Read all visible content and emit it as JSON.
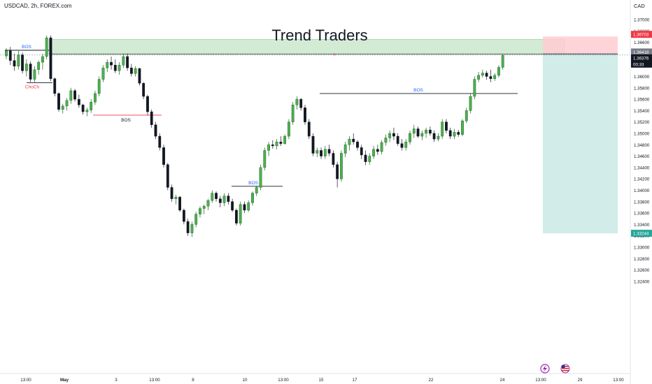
{
  "header": {
    "symbol_label": "USDCAD, 2h, FOREX.com",
    "currency": "CAD"
  },
  "title": "Trend Traders",
  "chart_data": {
    "type": "candlestick",
    "ylim": [
      1.3225,
      1.3725
    ],
    "y_ticks": [
      "1.37000",
      "1.36800",
      "1.36600",
      "1.36400",
      "1.36200",
      "1.36000",
      "1.35800",
      "1.35600",
      "1.35400",
      "1.35200",
      "1.35000",
      "1.34800",
      "1.34600",
      "1.34400",
      "1.34200",
      "1.34000",
      "1.33800",
      "1.33600",
      "1.33400",
      "1.33200",
      "1.33000",
      "1.32800",
      "1.32600",
      "1.32400"
    ],
    "x_ticks": [
      "13:00",
      "May",
      "3",
      "13:00",
      "8",
      "10",
      "13:00",
      "15",
      "17",
      "22",
      "24",
      "13:00",
      "29",
      "13:00"
    ],
    "price_tags": {
      "stop": "1.36703",
      "entry": "1.36418",
      "current": "1.36376",
      "countdown": "00:33",
      "target": "1.33244"
    },
    "annotations": [
      {
        "label": "BOS",
        "price": 1.3646,
        "color": "#2962ff"
      },
      {
        "label": "ChoCh",
        "price": 1.3589,
        "color": "#f23645"
      },
      {
        "label": "BOS",
        "price": 1.3532,
        "color": "#131722"
      },
      {
        "label": "BOS",
        "price": 1.3407,
        "color": "#2962ff"
      },
      {
        "label": "BOS",
        "price": 1.357,
        "color": "#2962ff"
      }
    ],
    "supply_zone": {
      "top": 1.3665,
      "bottom": 1.364
    },
    "short_position": {
      "entry": 1.364,
      "stop": 1.36703,
      "target": 1.33244
    },
    "series": [
      {
        "name": "candles",
        "values": [
          [
            1.3636,
            1.365,
            1.363,
            1.3645
          ],
          [
            1.3645,
            1.3652,
            1.362,
            1.3628
          ],
          [
            1.3628,
            1.364,
            1.361,
            1.3618
          ],
          [
            1.3618,
            1.3645,
            1.3612,
            1.3638
          ],
          [
            1.3638,
            1.3642,
            1.3605,
            1.361
          ],
          [
            1.361,
            1.363,
            1.36,
            1.3622
          ],
          [
            1.3622,
            1.3626,
            1.359,
            1.3595
          ],
          [
            1.3595,
            1.3618,
            1.359,
            1.3612
          ],
          [
            1.3612,
            1.3628,
            1.3603,
            1.3625
          ],
          [
            1.3625,
            1.364,
            1.3612,
            1.3635
          ],
          [
            1.3635,
            1.3672,
            1.363,
            1.3668
          ],
          [
            1.3668,
            1.3672,
            1.3592,
            1.3596
          ],
          [
            1.3596,
            1.3598,
            1.3565,
            1.357
          ],
          [
            1.357,
            1.3572,
            1.3538,
            1.3542
          ],
          [
            1.3542,
            1.3552,
            1.3535,
            1.3548
          ],
          [
            1.3548,
            1.3562,
            1.354,
            1.3558
          ],
          [
            1.3558,
            1.358,
            1.3552,
            1.3575
          ],
          [
            1.3575,
            1.3578,
            1.3556,
            1.356
          ],
          [
            1.356,
            1.3568,
            1.3545,
            1.355
          ],
          [
            1.355,
            1.3552,
            1.3533,
            1.3538
          ],
          [
            1.3538,
            1.3545,
            1.353,
            1.3541
          ],
          [
            1.3541,
            1.356,
            1.3536,
            1.3555
          ],
          [
            1.3555,
            1.3575,
            1.355,
            1.357
          ],
          [
            1.357,
            1.36,
            1.3565,
            1.3595
          ],
          [
            1.3595,
            1.362,
            1.359,
            1.3615
          ],
          [
            1.3615,
            1.363,
            1.3608,
            1.3625
          ],
          [
            1.3625,
            1.3635,
            1.3612,
            1.362
          ],
          [
            1.362,
            1.363,
            1.3606,
            1.361
          ],
          [
            1.361,
            1.3625,
            1.3603,
            1.362
          ],
          [
            1.362,
            1.364,
            1.3615,
            1.3635
          ],
          [
            1.3635,
            1.364,
            1.361,
            1.3615
          ],
          [
            1.3615,
            1.3622,
            1.36,
            1.3605
          ],
          [
            1.3605,
            1.3618,
            1.36,
            1.3614
          ],
          [
            1.3614,
            1.3615,
            1.3584,
            1.3588
          ],
          [
            1.3588,
            1.359,
            1.356,
            1.3565
          ],
          [
            1.3565,
            1.3568,
            1.3532,
            1.3538
          ],
          [
            1.3538,
            1.3542,
            1.351,
            1.3515
          ],
          [
            1.3515,
            1.352,
            1.349,
            1.3495
          ],
          [
            1.3495,
            1.35,
            1.347,
            1.3475
          ],
          [
            1.3475,
            1.348,
            1.344,
            1.3445
          ],
          [
            1.3445,
            1.3448,
            1.34,
            1.3405
          ],
          [
            1.3405,
            1.341,
            1.338,
            1.3385
          ],
          [
            1.3385,
            1.3392,
            1.3375,
            1.3388
          ],
          [
            1.3388,
            1.339,
            1.3362,
            1.3365
          ],
          [
            1.3365,
            1.3368,
            1.334,
            1.3345
          ],
          [
            1.3345,
            1.335,
            1.332,
            1.3325
          ],
          [
            1.3325,
            1.3345,
            1.3318,
            1.334
          ],
          [
            1.334,
            1.3362,
            1.3335,
            1.3358
          ],
          [
            1.3358,
            1.3372,
            1.3352,
            1.3368
          ],
          [
            1.3368,
            1.3375,
            1.3358,
            1.3372
          ],
          [
            1.3372,
            1.3385,
            1.3365,
            1.3382
          ],
          [
            1.3382,
            1.34,
            1.3378,
            1.3395
          ],
          [
            1.3395,
            1.3398,
            1.338,
            1.3385
          ],
          [
            1.3385,
            1.339,
            1.337,
            1.3378
          ],
          [
            1.3378,
            1.3395,
            1.3372,
            1.339
          ],
          [
            1.339,
            1.3395,
            1.3375,
            1.338
          ],
          [
            1.338,
            1.3385,
            1.3362,
            1.3365
          ],
          [
            1.3365,
            1.3368,
            1.3338,
            1.3342
          ],
          [
            1.3342,
            1.338,
            1.3338,
            1.3375
          ],
          [
            1.3375,
            1.338,
            1.336,
            1.3365
          ],
          [
            1.3365,
            1.3382,
            1.3362,
            1.3378
          ],
          [
            1.3378,
            1.3398,
            1.3373,
            1.3395
          ],
          [
            1.3395,
            1.3408,
            1.339,
            1.3405
          ],
          [
            1.3405,
            1.3445,
            1.34,
            1.344
          ],
          [
            1.344,
            1.3475,
            1.3435,
            1.347
          ],
          [
            1.347,
            1.3485,
            1.346,
            1.348
          ],
          [
            1.348,
            1.3488,
            1.3473,
            1.3478
          ],
          [
            1.3478,
            1.349,
            1.3472,
            1.3485
          ],
          [
            1.3485,
            1.3495,
            1.3478,
            1.3482
          ],
          [
            1.3482,
            1.3498,
            1.348,
            1.3495
          ],
          [
            1.3495,
            1.3525,
            1.349,
            1.352
          ],
          [
            1.352,
            1.3555,
            1.3515,
            1.355
          ],
          [
            1.355,
            1.3565,
            1.3542,
            1.356
          ],
          [
            1.356,
            1.3562,
            1.354,
            1.3545
          ],
          [
            1.3545,
            1.355,
            1.3515,
            1.352
          ],
          [
            1.352,
            1.3525,
            1.349,
            1.3495
          ],
          [
            1.3495,
            1.35,
            1.346,
            1.3465
          ],
          [
            1.3465,
            1.3475,
            1.3458,
            1.347
          ],
          [
            1.347,
            1.3475,
            1.3455,
            1.346
          ],
          [
            1.346,
            1.3478,
            1.3455,
            1.3472
          ],
          [
            1.3472,
            1.348,
            1.346,
            1.3465
          ],
          [
            1.3465,
            1.347,
            1.344,
            1.3445
          ],
          [
            1.3445,
            1.345,
            1.3405,
            1.342
          ],
          [
            1.342,
            1.347,
            1.3415,
            1.3465
          ],
          [
            1.3465,
            1.3485,
            1.3458,
            1.348
          ],
          [
            1.348,
            1.3495,
            1.347,
            1.349
          ],
          [
            1.349,
            1.35,
            1.348,
            1.3485
          ],
          [
            1.3485,
            1.3488,
            1.347,
            1.3475
          ],
          [
            1.3475,
            1.348,
            1.3455,
            1.3462
          ],
          [
            1.3462,
            1.347,
            1.3444,
            1.345
          ],
          [
            1.345,
            1.3465,
            1.3445,
            1.346
          ],
          [
            1.346,
            1.3478,
            1.3455,
            1.3472
          ],
          [
            1.3472,
            1.348,
            1.3462,
            1.3468
          ],
          [
            1.3468,
            1.3488,
            1.3463,
            1.3484
          ],
          [
            1.3484,
            1.3498,
            1.3478,
            1.3492
          ],
          [
            1.3492,
            1.3505,
            1.3485,
            1.35
          ],
          [
            1.35,
            1.351,
            1.3488,
            1.3495
          ],
          [
            1.3495,
            1.35,
            1.3478,
            1.3482
          ],
          [
            1.3482,
            1.349,
            1.347,
            1.3475
          ],
          [
            1.3475,
            1.349,
            1.347,
            1.3485
          ],
          [
            1.3485,
            1.3505,
            1.348,
            1.35
          ],
          [
            1.35,
            1.3515,
            1.3492,
            1.3508
          ],
          [
            1.3508,
            1.3512,
            1.3492,
            1.3495
          ],
          [
            1.3495,
            1.3505,
            1.3488,
            1.35
          ],
          [
            1.35,
            1.351,
            1.3492,
            1.3506
          ],
          [
            1.3506,
            1.3512,
            1.3496,
            1.35
          ],
          [
            1.35,
            1.3505,
            1.3485,
            1.349
          ],
          [
            1.349,
            1.35,
            1.3486,
            1.3495
          ],
          [
            1.3495,
            1.3525,
            1.349,
            1.352
          ],
          [
            1.352,
            1.3525,
            1.35,
            1.3505
          ],
          [
            1.3505,
            1.351,
            1.349,
            1.3495
          ],
          [
            1.3495,
            1.3508,
            1.349,
            1.3502
          ],
          [
            1.3502,
            1.3506,
            1.3494,
            1.3498
          ],
          [
            1.3498,
            1.3525,
            1.3495,
            1.3522
          ],
          [
            1.3522,
            1.3545,
            1.3518,
            1.354
          ],
          [
            1.354,
            1.357,
            1.3535,
            1.3565
          ],
          [
            1.3565,
            1.36,
            1.356,
            1.3595
          ],
          [
            1.3595,
            1.3608,
            1.359,
            1.3602
          ],
          [
            1.3602,
            1.3612,
            1.3598,
            1.3606
          ],
          [
            1.3606,
            1.361,
            1.3594,
            1.36
          ],
          [
            1.36,
            1.3612,
            1.359,
            1.3596
          ],
          [
            1.3596,
            1.3606,
            1.3592,
            1.3602
          ],
          [
            1.3602,
            1.362,
            1.3598,
            1.3616
          ],
          [
            1.3616,
            1.364,
            1.3612,
            1.3637
          ]
        ]
      }
    ]
  },
  "footer": {
    "icon_labels": [
      "flash-icon",
      "us-flag-icon"
    ]
  }
}
